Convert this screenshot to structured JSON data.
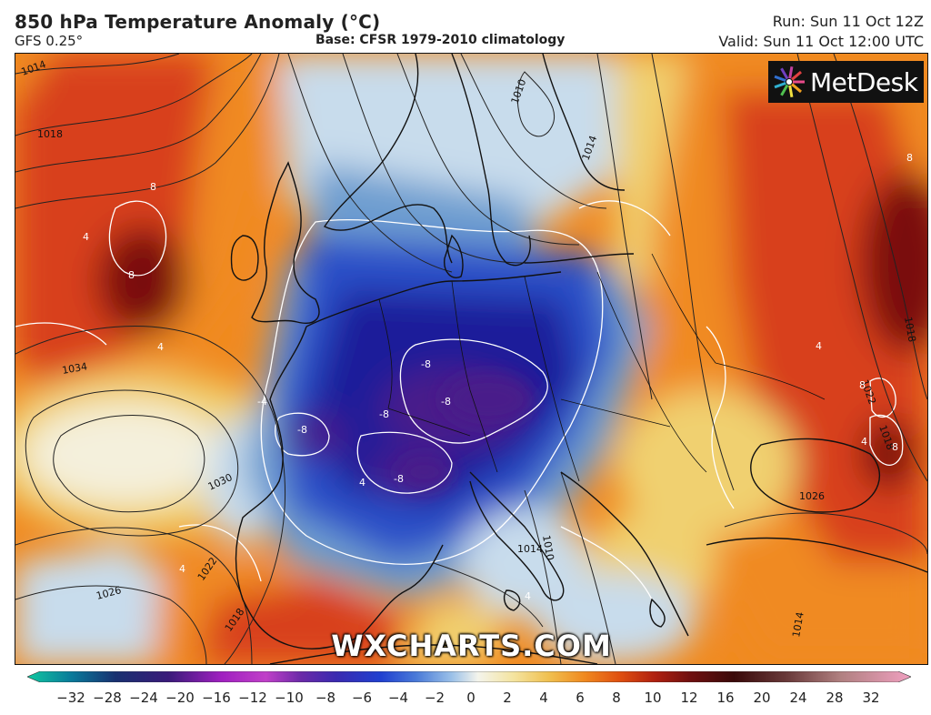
{
  "header": {
    "title": "850 hPa Temperature Anomaly (°C)",
    "model": "GFS 0.25°",
    "base": "Base: CFSR 1979-2010 climatology",
    "run": "Run: Sun 11 Oct 12Z",
    "valid": "Valid: Sun 11 Oct 12:00 UTC"
  },
  "logo": {
    "text": "MetDesk",
    "icon": "metdesk-burst-icon"
  },
  "watermark": "WXCHARTS.COM",
  "map": {
    "region": "Europe and North Atlantic",
    "isobar_labels": [
      "1014",
      "1018",
      "1034",
      "1030",
      "1026",
      "1022",
      "1018",
      "1010",
      "1014",
      "1022",
      "1018",
      "1026",
      "1010",
      "1014",
      "1014",
      "1018"
    ],
    "anomaly_labels": [
      "8",
      "8",
      "4",
      "4",
      "-4",
      "-8",
      "-8",
      "-8",
      "-8",
      "-8",
      "4",
      "8",
      "8",
      "8",
      "4",
      "4",
      "4",
      "4"
    ],
    "colors": {
      "warm_dark": "#7a1010",
      "warm": "#d8401a",
      "orange": "#f08a20",
      "yellow": "#f0d070",
      "neutral": "#f4f0dc",
      "cool_light": "#c8dcec",
      "cool": "#6e9ed0",
      "cold": "#2a50c8",
      "cold_dark": "#1a1c9a",
      "coldest": "#4a1c8a",
      "land_outline": "#111111",
      "isobar": "#222222",
      "anomaly_contour": "#ffffff"
    }
  },
  "colorbar": {
    "ticks": [
      "−32",
      "−28",
      "−24",
      "−20",
      "−16",
      "−12",
      "−10",
      "−8",
      "−6",
      "−4",
      "−2",
      "0",
      "2",
      "4",
      "6",
      "8",
      "10",
      "12",
      "16",
      "20",
      "24",
      "28",
      "32"
    ]
  }
}
